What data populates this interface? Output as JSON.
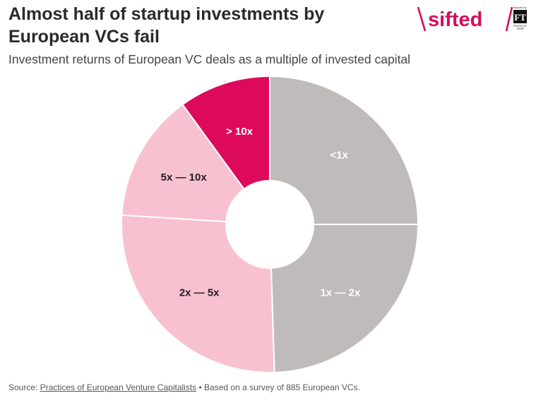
{
  "header": {
    "title": "Almost half of startup investments by European VCs fail",
    "subtitle": "Investment returns of European VC deals as a multiple of invested capital"
  },
  "logo": {
    "brand": "sifted",
    "backed_by": "Backed by",
    "ft_mark": "FT",
    "ft_name_line1": "FINANCIAL",
    "ft_name_line2": "TIMES",
    "brand_color": "#d50c5a"
  },
  "chart_data": {
    "type": "pie",
    "donut": true,
    "slices": [
      {
        "label": "<1x",
        "value": 25.0,
        "color": "#bfbbba",
        "label_color": "#ffffff"
      },
      {
        "label": "1x — 2x",
        "value": 24.5,
        "color": "#bfbbba",
        "label_color": "#ffffff"
      },
      {
        "label": "2x — 5x",
        "value": 26.5,
        "color": "#f8c1cf",
        "label_color": "#1f1f1f"
      },
      {
        "label": "5x — 10x",
        "value": 14.0,
        "color": "#f8c1cf",
        "label_color": "#1f1f1f"
      },
      {
        "label": "> 10x",
        "value": 10.0,
        "color": "#dd0a5b",
        "label_color": "#ffffff"
      }
    ]
  },
  "footer": {
    "source_prefix": "Source: ",
    "source_link": "Practices of European Venture Capitalists",
    "source_note": " • Based on a survey of 885 European VCs."
  }
}
